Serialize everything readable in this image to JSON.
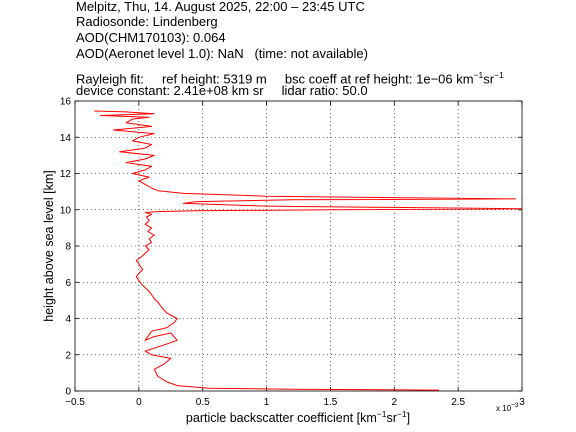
{
  "header": {
    "line1": "Melpitz, Thu, 14. August 2025, 22:00 – 23:45 UTC",
    "line2": "Radiosonde: Lindenberg",
    "line3": "AOD(CHM170103): 0.064",
    "line4": "AOD(Aeronet level 1.0): NaN   (time: not available)",
    "line5_a": "Rayleigh fit:     ref height: 5319 m     bsc coeff at ref height: 1e−06 km",
    "line5_sup1": "−1",
    "line5_b": "sr",
    "line5_sup2": "−1",
    "line6": "device constant: 2.41e+08 km sr     lidar ratio: 50.0"
  },
  "chart_data": {
    "type": "line",
    "title": "",
    "xlabel": "particle backscatter coefficient [km",
    "xlabel_sup1": "−1",
    "xlabel_mid": "sr",
    "xlabel_sup2": "−1",
    "xlabel_end": "]",
    "ylabel": "height above sea level [km]",
    "x_multiplier": "x 10",
    "x_multiplier_exp": "−3",
    "xlim": [
      -0.5,
      3.0
    ],
    "ylim": [
      0,
      16
    ],
    "grid": true,
    "xticks": [
      -0.5,
      0,
      0.5,
      1,
      1.5,
      2,
      2.5,
      3
    ],
    "xtick_labels": [
      "−0.5",
      "0",
      "0.5",
      "1",
      "1.5",
      "2",
      "2.5",
      "3"
    ],
    "yticks": [
      0,
      2,
      4,
      6,
      8,
      10,
      12,
      14,
      16
    ],
    "ytick_labels": [
      "0",
      "2",
      "4",
      "6",
      "8",
      "10",
      "12",
      "14",
      "16"
    ],
    "series": [
      {
        "color": "#ff0000",
        "x": [
          2.35,
          1.2,
          0.55,
          0.3,
          0.22,
          0.15,
          0.12,
          0.2,
          0.25,
          0.1,
          0.05,
          0.18,
          0.3,
          0.25,
          0.12,
          0.05,
          0.1,
          0.22,
          0.28,
          0.3,
          0.22,
          0.18,
          0.15,
          0.12,
          0.1,
          0.08,
          0.05,
          0.02,
          0.0,
          -0.02,
          0.0,
          0.03,
          0.0,
          -0.02,
          0.02,
          0.05,
          0.08,
          0.05,
          0.1,
          0.08,
          0.12,
          0.07,
          0.1,
          0.05,
          0.08,
          0.06,
          0.1,
          0.05,
          0.15,
          0.45,
          1.5,
          3.0,
          1.0,
          0.35,
          0.45,
          1.2,
          2.95,
          1.0,
          0.35,
          0.15,
          0.1,
          0.05,
          0.0,
          0.08,
          -0.05,
          0.05,
          0.1,
          -0.1,
          0.05,
          0.12,
          -0.15,
          0.05,
          0.1,
          -0.05,
          0.0,
          0.12,
          -0.2,
          0.1,
          -0.1,
          -0.05,
          0.08,
          -0.3,
          0.12,
          0.0,
          -0.1,
          -0.35
        ],
        "y": [
          0.05,
          0.1,
          0.15,
          0.3,
          0.5,
          0.8,
          1.2,
          1.5,
          1.8,
          2.0,
          2.2,
          2.5,
          2.8,
          3.2,
          3.0,
          2.8,
          3.3,
          3.5,
          3.8,
          4.0,
          4.3,
          4.6,
          4.9,
          5.1,
          5.3,
          5.5,
          5.7,
          5.9,
          6.1,
          6.3,
          6.5,
          6.7,
          7.0,
          7.2,
          7.4,
          7.6,
          7.8,
          8.0,
          8.2,
          8.4,
          8.6,
          8.8,
          9.0,
          9.2,
          9.4,
          9.6,
          9.75,
          9.85,
          9.9,
          9.95,
          10.0,
          10.05,
          10.2,
          10.35,
          10.45,
          10.55,
          10.6,
          10.75,
          10.9,
          11.05,
          11.2,
          11.4,
          11.6,
          11.8,
          12.0,
          12.2,
          12.4,
          12.6,
          12.8,
          13.0,
          13.2,
          13.4,
          13.6,
          13.8,
          14.0,
          14.2,
          14.4,
          14.6,
          14.8,
          15.0,
          15.1,
          15.2,
          15.3,
          15.35,
          15.4,
          15.45
        ]
      }
    ]
  }
}
